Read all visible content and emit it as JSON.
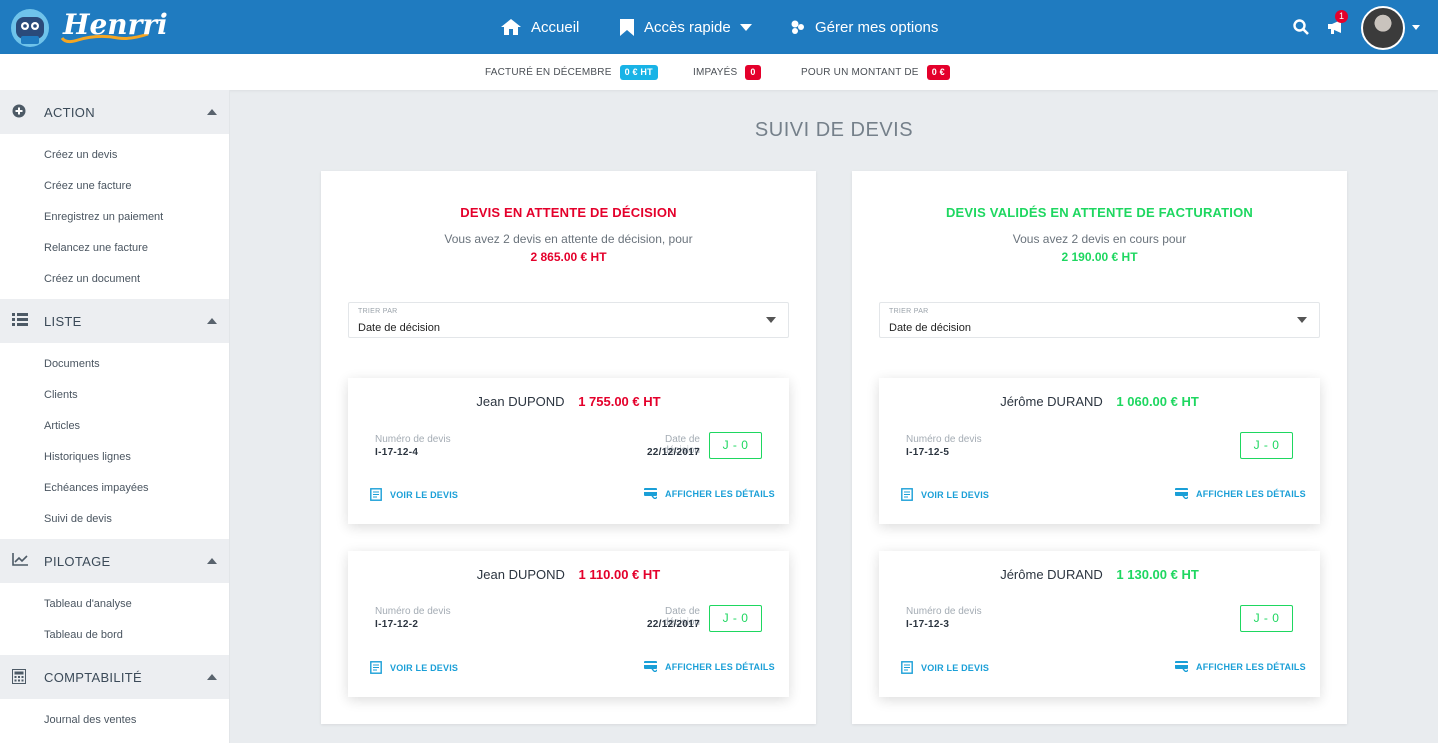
{
  "app": {
    "name": "Henrri"
  },
  "nav": {
    "items": [
      {
        "label": "Accueil",
        "icon": "home-icon"
      },
      {
        "label": "Accès rapide",
        "icon": "bookmark-icon"
      },
      {
        "label": "Gérer mes options",
        "icon": "options-icon"
      }
    ],
    "notification_count": "1"
  },
  "stats": {
    "billed_label": "FACTURÉ EN DÉCEMBRE",
    "billed_value": "0 € HT",
    "unpaid_label": "IMPAYÉS",
    "unpaid_value": "0",
    "amount_label": "POUR UN MONTANT DE",
    "amount_value": "0 €"
  },
  "sidebar": {
    "sections": [
      {
        "title": "ACTION",
        "icon": "plus-circle-icon",
        "items": [
          "Créez un devis",
          "Créez une facture",
          "Enregistrez un paiement",
          "Relancez une facture",
          "Créez un document"
        ]
      },
      {
        "title": "LISTE",
        "icon": "list-icon",
        "items": [
          "Documents",
          "Clients",
          "Articles",
          "Historiques lignes",
          "Echéances impayées",
          "Suivi de devis"
        ]
      },
      {
        "title": "PILOTAGE",
        "icon": "chart-line-icon",
        "items": [
          "Tableau d'analyse",
          "Tableau de bord"
        ]
      },
      {
        "title": "COMPTABILITÉ",
        "icon": "calculator-icon",
        "items": [
          "Journal des ventes"
        ]
      }
    ]
  },
  "page": {
    "title": "SUIVI DE DEVIS"
  },
  "colors": {
    "header": "#1f7bc0",
    "red": "#e4002b",
    "green": "#1ed760",
    "blue": "#1a9fd7",
    "stat_blue": "#18b3e6"
  },
  "panels": [
    {
      "title": "DEVIS EN ATTENTE DE DÉCISION",
      "subtitle": "Vous avez 2 devis en attente de décision, pour",
      "amount": "2 865.00 € HT",
      "sort_caption": "TRIER PAR",
      "sort_value": "Date de décision",
      "cards": [
        {
          "client": "Jean DUPOND",
          "amount": "1 755.00 € HT",
          "number_label": "Numéro de devis",
          "number": "I-17-12-4",
          "date_label": "Date de décision",
          "date": "22/12/2017",
          "days": "J - 0",
          "view_label": "VOIR LE DEVIS",
          "details_label": "AFFICHER LES DÉTAILS"
        },
        {
          "client": "Jean DUPOND",
          "amount": "1 110.00 € HT",
          "number_label": "Numéro de devis",
          "number": "I-17-12-2",
          "date_label": "Date de décision",
          "date": "22/12/2017",
          "days": "J - 0",
          "view_label": "VOIR LE DEVIS",
          "details_label": "AFFICHER LES DÉTAILS"
        }
      ]
    },
    {
      "title": "DEVIS VALIDÉS EN ATTENTE DE FACTURATION",
      "subtitle": "Vous avez 2 devis en cours pour",
      "amount": "2 190.00 € HT",
      "sort_caption": "TRIER PAR",
      "sort_value": "Date de décision",
      "cards": [
        {
          "client": "Jérôme DURAND",
          "amount": "1 060.00 € HT",
          "number_label": "Numéro de devis",
          "number": "I-17-12-5",
          "days": "J - 0",
          "view_label": "VOIR LE DEVIS",
          "details_label": "AFFICHER LES DÉTAILS"
        },
        {
          "client": "Jérôme DURAND",
          "amount": "1 130.00 € HT",
          "number_label": "Numéro de devis",
          "number": "I-17-12-3",
          "days": "J - 0",
          "view_label": "VOIR LE DEVIS",
          "details_label": "AFFICHER LES DÉTAILS"
        }
      ]
    }
  ]
}
